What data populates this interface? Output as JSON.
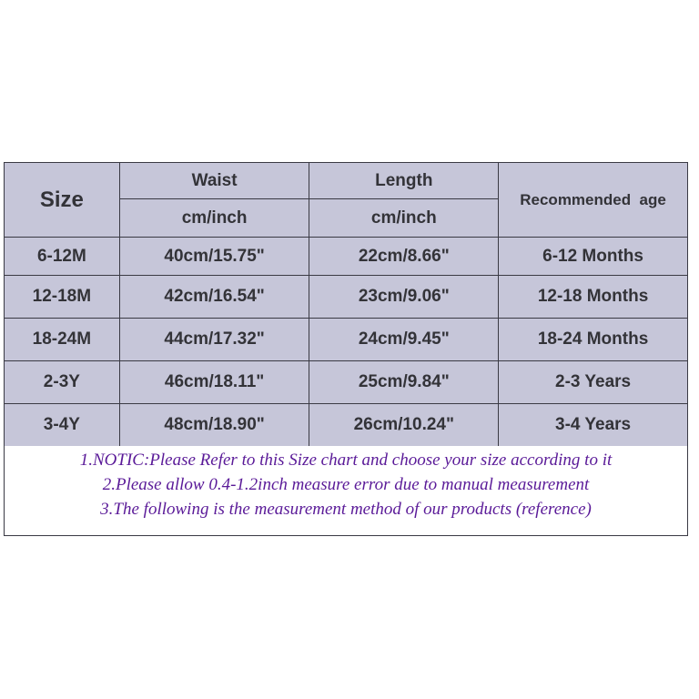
{
  "headers": {
    "size": "Size",
    "waist": "Waist",
    "waist_unit": "cm/inch",
    "length": "Length",
    "length_unit": "cm/inch",
    "age": "Recommended  age"
  },
  "rows": [
    {
      "size": "6-12M",
      "waist": "40cm/15.75\"",
      "length": "22cm/8.66\"",
      "age": "6-12 Months"
    },
    {
      "size": "12-18M",
      "waist": "42cm/16.54\"",
      "length": "23cm/9.06\"",
      "age": "12-18 Months"
    },
    {
      "size": "18-24M",
      "waist": "44cm/17.32\"",
      "length": "24cm/9.45\"",
      "age": "18-24 Months"
    },
    {
      "size": "2-3Y",
      "waist": "46cm/18.11\"",
      "length": "25cm/9.84\"",
      "age": "2-3 Years"
    },
    {
      "size": "3-4Y",
      "waist": "48cm/18.90\"",
      "length": "26cm/10.24\"",
      "age": "3-4 Years"
    }
  ],
  "notes": [
    "1.NOTIC:Please Refer to this Size chart and choose your size according to it",
    "2.Please allow 0.4-1.2inch measure error due to manual measurement",
    "3.The following is the measurement method of our products (reference)"
  ],
  "colors": {
    "header_bg": "#c6c6d9",
    "text": "#333338",
    "notes_text": "#5a1a98"
  }
}
